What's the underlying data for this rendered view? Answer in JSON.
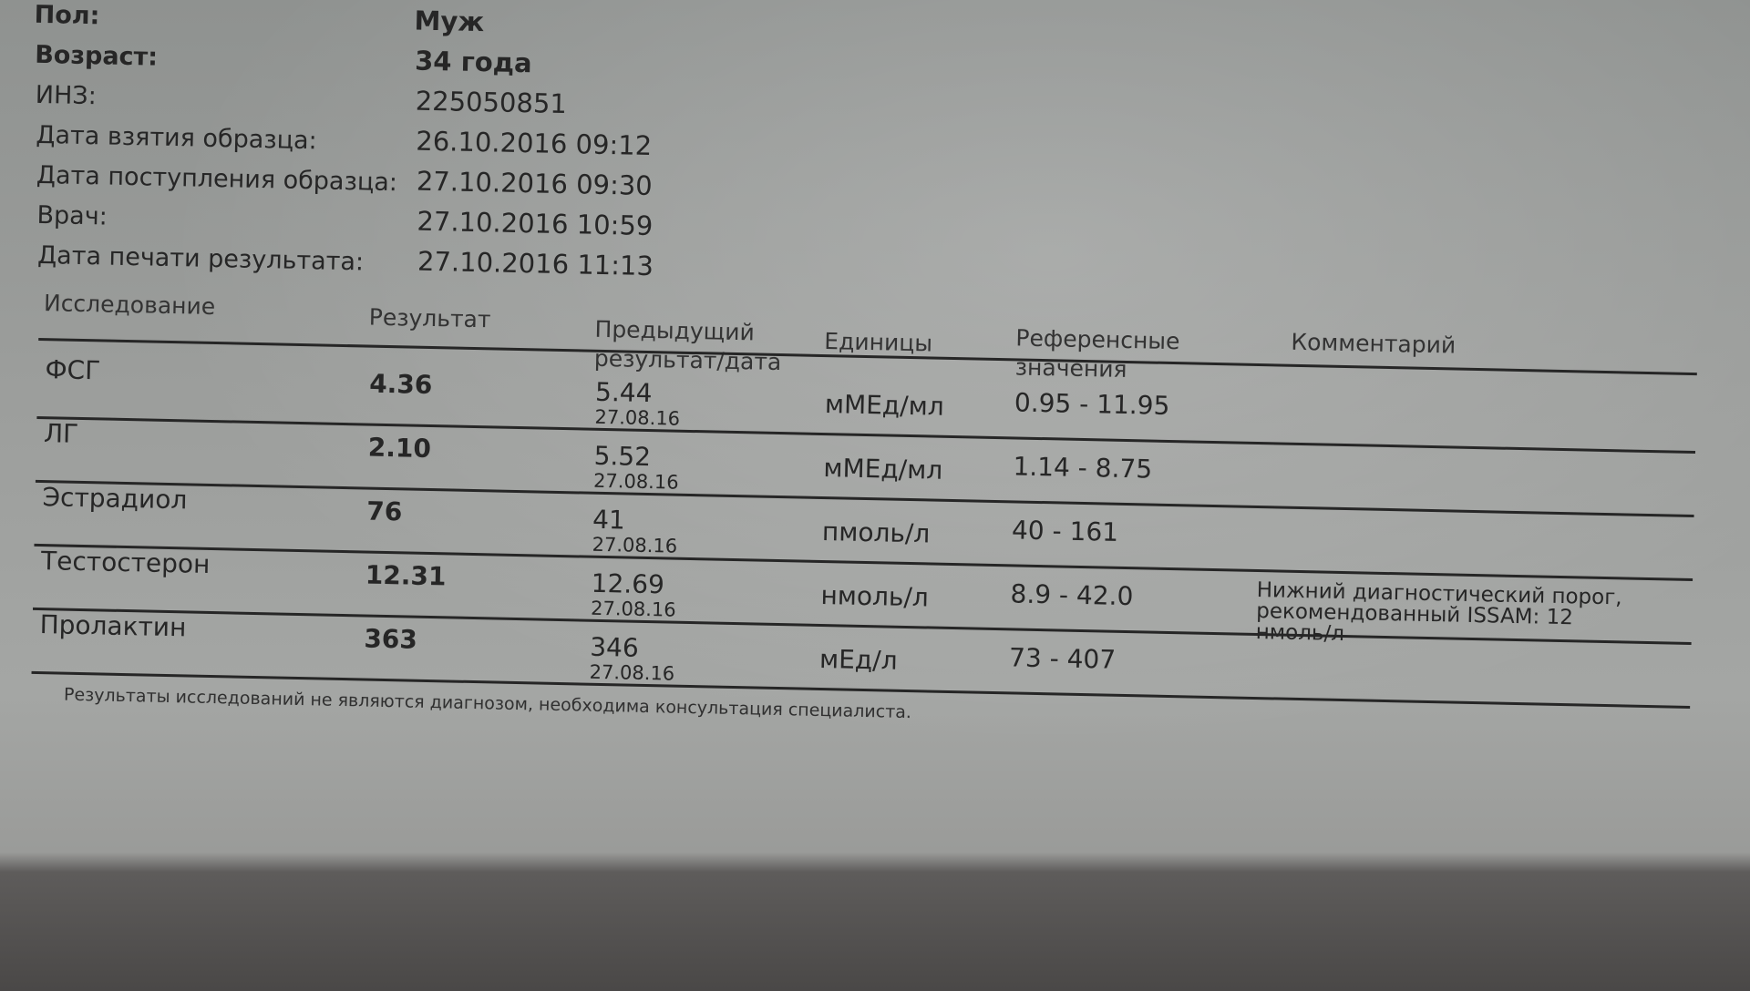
{
  "patient": [
    {
      "label": "Пол:",
      "value": "Муж",
      "bold": true
    },
    {
      "label": "Возраст:",
      "value": "34 года",
      "bold": true
    },
    {
      "label": "ИНЗ:",
      "value": "225050851"
    },
    {
      "label": "Дата взятия образца:",
      "value": "26.10.2016 09:12"
    },
    {
      "label": "Дата поступления образца:",
      "value": "27.10.2016 09:30"
    },
    {
      "label": "Врач:",
      "value": "27.10.2016 10:59"
    },
    {
      "label": "Дата печати результата:",
      "value": "27.10.2016 11:13"
    }
  ],
  "table": {
    "headers": [
      "Исследование",
      "Результат",
      "Предыдущий результат/дата",
      "Единицы",
      "Референсные значения",
      "Комментарий"
    ],
    "rows": [
      {
        "name": "ФСГ",
        "result": "4.36",
        "prev": "5.44",
        "prev_date": "27.08.16",
        "units": "мМЕд/мл",
        "ref": "0.95 - 11.95",
        "comment": ""
      },
      {
        "name": "ЛГ",
        "result": "2.10",
        "prev": "5.52",
        "prev_date": "27.08.16",
        "units": "мМЕд/мл",
        "ref": "1.14 - 8.75",
        "comment": ""
      },
      {
        "name": "Эстрадиол",
        "result": "76",
        "prev": "41",
        "prev_date": "27.08.16",
        "units": "пмоль/л",
        "ref": "40 - 161",
        "comment": ""
      },
      {
        "name": "Тестостерон",
        "result": "12.31",
        "prev": "12.69",
        "prev_date": "27.08.16",
        "units": "нмоль/л",
        "ref": "8.9 - 42.0",
        "comment": "Нижний диагностический порог, рекомендованный ISSAM: 12 нмоль/л"
      },
      {
        "name": "Пролактин",
        "result": "363",
        "prev": "346",
        "prev_date": "27.08.16",
        "units": "мЕд/л",
        "ref": "73 - 407",
        "comment": ""
      }
    ]
  },
  "footer": "Результаты исследований не являются диагнозом, необходима консультация специалиста."
}
